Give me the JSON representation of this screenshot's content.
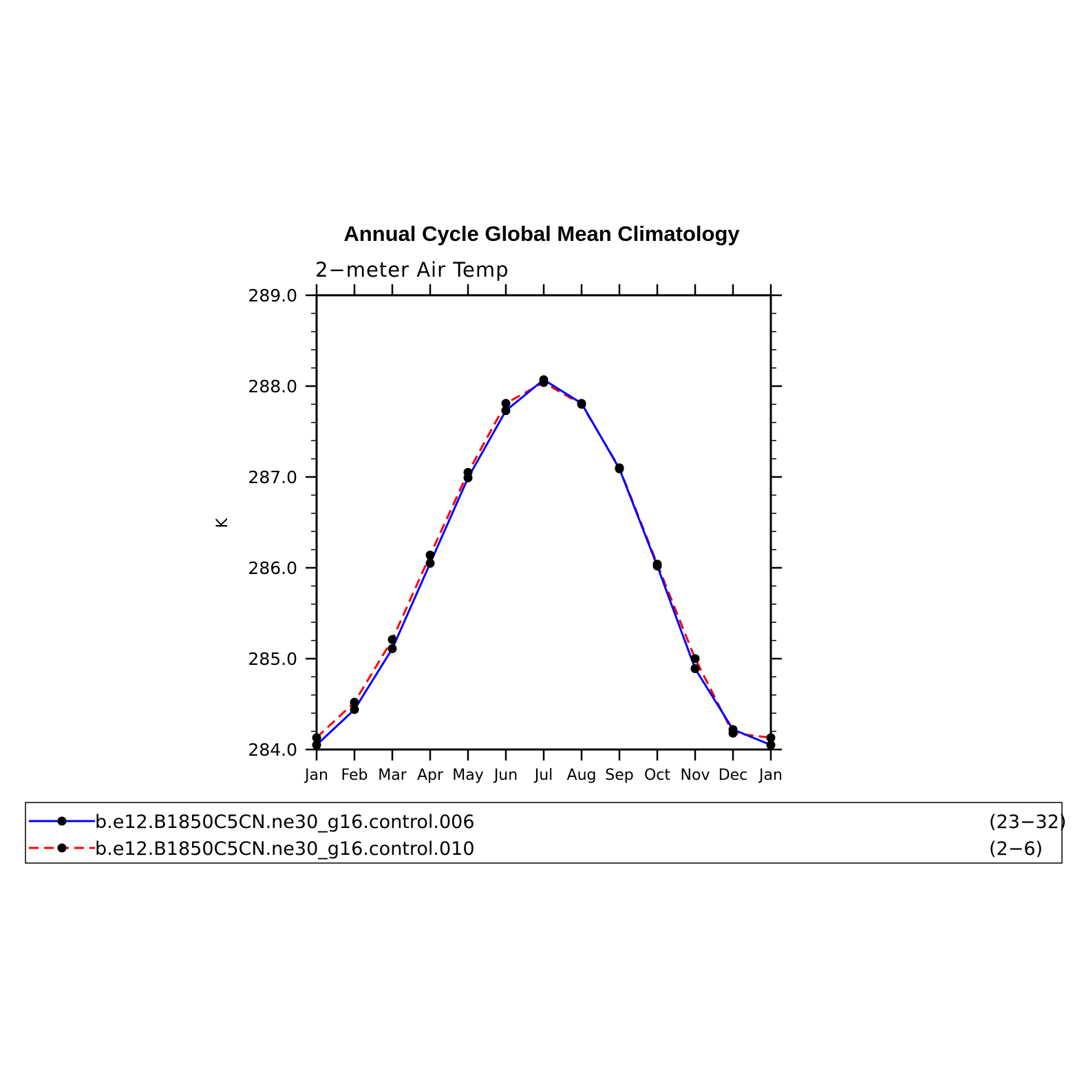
{
  "chart_data": {
    "type": "line",
    "title": "Annual Cycle Global Mean Climatology",
    "subtitle": "2−meter Air Temp",
    "ylabel": "K",
    "xlabel": "",
    "categories": [
      "Jan",
      "Feb",
      "Mar",
      "Apr",
      "May",
      "Jun",
      "Jul",
      "Aug",
      "Sep",
      "Oct",
      "Nov",
      "Dec",
      "Jan"
    ],
    "ylim": [
      284.0,
      289.0
    ],
    "yticks": [
      "284.0",
      "285.0",
      "286.0",
      "287.0",
      "288.0",
      "289.0"
    ],
    "grid": false,
    "legend_position": "bottom",
    "series": [
      {
        "name": "b.e12.B1850C5CN.ne30_g16.control.006",
        "years": "(23−32)",
        "color": "#0000ff",
        "style": "solid",
        "values": [
          284.05,
          284.44,
          285.11,
          286.05,
          286.99,
          287.73,
          288.07,
          287.81,
          287.09,
          286.02,
          284.89,
          284.22,
          284.05
        ]
      },
      {
        "name": "b.e12.B1850C5CN.ne30_g16.control.010",
        "years": "(2−6)",
        "color": "#ff0000",
        "style": "dashed",
        "values": [
          284.13,
          284.52,
          285.21,
          286.14,
          287.05,
          287.81,
          288.04,
          287.8,
          287.1,
          286.04,
          285.0,
          284.18,
          284.13
        ]
      }
    ]
  }
}
